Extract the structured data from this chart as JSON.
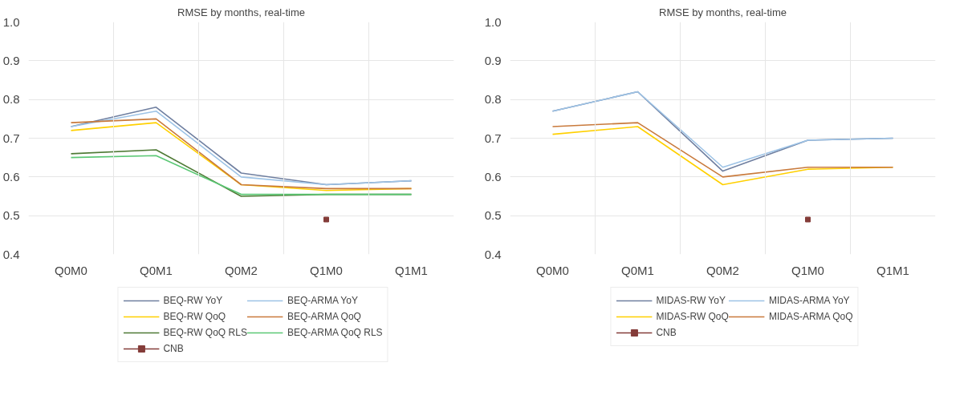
{
  "chart_data": [
    {
      "type": "line",
      "title": "RMSE by months, real-time",
      "categories": [
        "Q0M0",
        "Q0M1",
        "Q0M2",
        "Q1M0",
        "Q1M1"
      ],
      "ylim": [
        0.4,
        1.0
      ],
      "yticks": [
        0.4,
        0.5,
        0.6,
        0.7,
        0.8,
        0.9,
        {
          "value": 1.0,
          "label": "1.0"
        }
      ],
      "grid": true,
      "legend": "bottom",
      "marker": "none",
      "line_style": "solid",
      "series": [
        {
          "name": "BEQ-RW YoY",
          "color": "#6f7fa0",
          "values": [
            0.73,
            0.78,
            0.61,
            0.58,
            0.59
          ]
        },
        {
          "name": "BEQ-ARMA YoY",
          "color": "#9dc3e6",
          "values": [
            0.73,
            0.77,
            0.6,
            0.58,
            0.59
          ]
        },
        {
          "name": "BEQ-RW QoQ",
          "color": "#ffd000",
          "values": [
            0.72,
            0.74,
            0.58,
            0.565,
            0.57
          ]
        },
        {
          "name": "BEQ-ARMA QoQ",
          "color": "#c97a3c",
          "values": [
            0.74,
            0.75,
            0.58,
            0.57,
            0.57
          ]
        },
        {
          "name": "BEQ-RW QoQ RLS",
          "color": "#4e7a35",
          "values": [
            0.66,
            0.67,
            0.55,
            0.555,
            0.555
          ]
        },
        {
          "name": "BEQ-ARMA QoQ RLS",
          "color": "#5bc875",
          "values": [
            0.65,
            0.655,
            0.555,
            0.555,
            0.555
          ]
        },
        {
          "name": "CNB",
          "color": "#843c39",
          "marker": "square",
          "values": [
            null,
            null,
            null,
            0.49,
            null
          ]
        }
      ]
    },
    {
      "type": "line",
      "title": "RMSE by months, real-time",
      "categories": [
        "Q0M0",
        "Q0M1",
        "Q0M2",
        "Q1M0",
        "Q1M1"
      ],
      "ylim": [
        0.4,
        1.0
      ],
      "yticks": [
        0.4,
        0.5,
        0.6,
        0.7,
        0.8,
        0.9,
        {
          "value": 1.0,
          "label": "1.0"
        }
      ],
      "grid": true,
      "legend": "bottom",
      "marker": "none",
      "line_style": "solid",
      "series": [
        {
          "name": "MIDAS-RW YoY",
          "color": "#6f7fa0",
          "values": [
            0.77,
            0.82,
            0.615,
            0.695,
            0.7
          ]
        },
        {
          "name": "MIDAS-ARMA YoY",
          "color": "#9dc3e6",
          "values": [
            0.77,
            0.82,
            0.625,
            0.695,
            0.7
          ]
        },
        {
          "name": "MIDAS-RW QoQ",
          "color": "#ffd000",
          "values": [
            0.71,
            0.73,
            0.58,
            0.62,
            0.625
          ]
        },
        {
          "name": "MIDAS-ARMA QoQ",
          "color": "#c97a3c",
          "values": [
            0.73,
            0.74,
            0.6,
            0.625,
            0.625
          ]
        },
        {
          "name": "CNB",
          "color": "#843c39",
          "marker": "square",
          "values": [
            null,
            null,
            null,
            0.49,
            null
          ]
        }
      ]
    }
  ]
}
